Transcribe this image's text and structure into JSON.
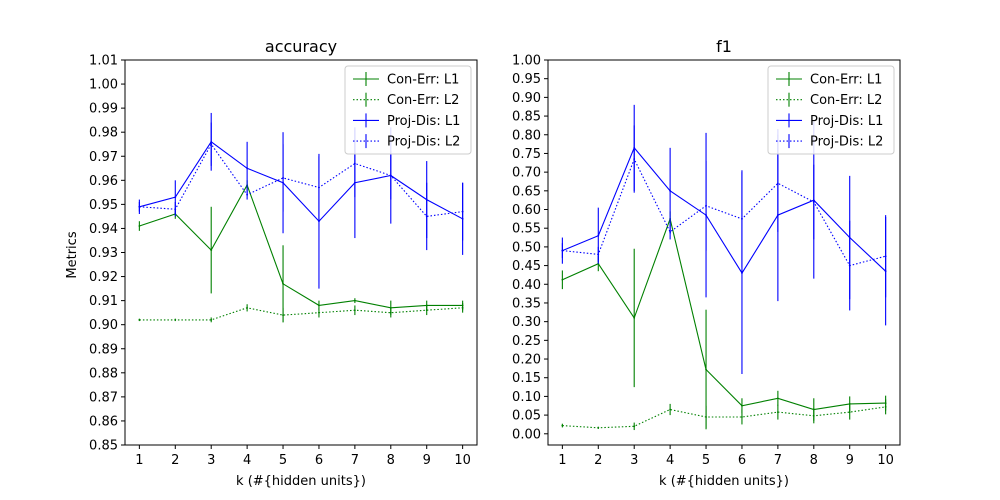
{
  "chart_data": [
    {
      "type": "line",
      "title": "accuracy",
      "xlabel": "k (#{hidden units})",
      "ylabel": "Metrics",
      "x": [
        1,
        2,
        3,
        4,
        5,
        6,
        7,
        8,
        9,
        10
      ],
      "xlim": [
        0.6,
        10.4
      ],
      "ylim": [
        0.85,
        1.01
      ],
      "yticks": [
        0.85,
        0.86,
        0.87,
        0.88,
        0.89,
        0.9,
        0.91,
        0.92,
        0.93,
        0.94,
        0.95,
        0.96,
        0.97,
        0.98,
        0.99,
        1.0,
        1.01
      ],
      "ytick_labels": [
        "0.85",
        "0.86",
        "0.87",
        "0.88",
        "0.89",
        "0.90",
        "0.91",
        "0.92",
        "0.93",
        "0.94",
        "0.95",
        "0.96",
        "0.97",
        "0.98",
        "0.99",
        "1.00",
        "1.01"
      ],
      "legend_position": "top-right",
      "grid": false,
      "series": [
        {
          "name": "Con-Err: L1",
          "color": "#008000",
          "dash": "solid",
          "values": [
            0.941,
            0.946,
            0.931,
            0.958,
            0.917,
            0.908,
            0.91,
            0.907,
            0.908,
            0.908
          ],
          "errors": [
            0.002,
            0.002,
            0.018,
            0.002,
            0.016,
            0.002,
            0.001,
            0.003,
            0.002,
            0.002
          ]
        },
        {
          "name": "Con-Err: L2",
          "color": "#008000",
          "dash": "dotted",
          "values": [
            0.902,
            0.902,
            0.902,
            0.907,
            0.904,
            0.905,
            0.906,
            0.905,
            0.906,
            0.907
          ],
          "errors": [
            0.0005,
            0.0005,
            0.001,
            0.0015,
            0.003,
            0.002,
            0.002,
            0.002,
            0.002,
            0.002
          ]
        },
        {
          "name": "Proj-Dis: L1",
          "color": "#0000ff",
          "dash": "solid",
          "values": [
            0.949,
            0.953,
            0.976,
            0.965,
            0.959,
            0.943,
            0.959,
            0.962,
            0.952,
            0.944
          ],
          "errors": [
            0.003,
            0.007,
            0.012,
            0.011,
            0.021,
            0.028,
            0.023,
            0.02,
            0.016,
            0.015
          ]
        },
        {
          "name": "Proj-Dis: L2",
          "color": "#0000ff",
          "dash": "dotted",
          "values": [
            0.949,
            0.948,
            0.975,
            0.954,
            0.961,
            0.957,
            0.967,
            0.962,
            0.945,
            0.947
          ],
          "errors": [
            0.002,
            0.003,
            0.009,
            0.002,
            0.014,
            0.013,
            0.014,
            0.01,
            0.014,
            0.012
          ]
        }
      ]
    },
    {
      "type": "line",
      "title": "f1",
      "xlabel": "k (#{hidden units})",
      "ylabel": "",
      "x": [
        1,
        2,
        3,
        4,
        5,
        6,
        7,
        8,
        9,
        10
      ],
      "xlim": [
        0.6,
        10.4
      ],
      "ylim": [
        -0.03,
        1.0
      ],
      "yticks": [
        0.0,
        0.05,
        0.1,
        0.15,
        0.2,
        0.25,
        0.3,
        0.35,
        0.4,
        0.45,
        0.5,
        0.55,
        0.6,
        0.65,
        0.7,
        0.75,
        0.8,
        0.85,
        0.9,
        0.95,
        1.0
      ],
      "ytick_labels": [
        "0.00",
        "0.05",
        "0.10",
        "0.15",
        "0.20",
        "0.25",
        "0.30",
        "0.35",
        "0.40",
        "0.45",
        "0.50",
        "0.55",
        "0.60",
        "0.65",
        "0.70",
        "0.75",
        "0.80",
        "0.85",
        "0.90",
        "0.95",
        "1.00"
      ],
      "legend_position": "top-right",
      "grid": false,
      "series": [
        {
          "name": "Con-Err: L1",
          "color": "#008000",
          "dash": "solid",
          "values": [
            0.412,
            0.455,
            0.31,
            0.575,
            0.172,
            0.075,
            0.095,
            0.065,
            0.08,
            0.082
          ],
          "errors": [
            0.025,
            0.02,
            0.185,
            0.02,
            0.16,
            0.02,
            0.02,
            0.03,
            0.02,
            0.02
          ]
        },
        {
          "name": "Con-Err: L2",
          "color": "#008000",
          "dash": "dotted",
          "values": [
            0.022,
            0.016,
            0.02,
            0.065,
            0.045,
            0.045,
            0.058,
            0.048,
            0.058,
            0.072
          ],
          "errors": [
            0.005,
            0.003,
            0.01,
            0.015,
            0.03,
            0.02,
            0.02,
            0.02,
            0.02,
            0.02
          ]
        },
        {
          "name": "Proj-Dis: L1",
          "color": "#0000ff",
          "dash": "solid",
          "values": [
            0.49,
            0.53,
            0.765,
            0.65,
            0.585,
            0.43,
            0.585,
            0.625,
            0.525,
            0.435
          ],
          "errors": [
            0.035,
            0.075,
            0.115,
            0.115,
            0.22,
            0.27,
            0.23,
            0.21,
            0.165,
            0.145
          ]
        },
        {
          "name": "Proj-Dis: L2",
          "color": "#0000ff",
          "dash": "dotted",
          "values": [
            0.49,
            0.48,
            0.735,
            0.54,
            0.61,
            0.575,
            0.67,
            0.62,
            0.45,
            0.475
          ],
          "errors": [
            0.02,
            0.02,
            0.09,
            0.02,
            0.12,
            0.13,
            0.13,
            0.1,
            0.12,
            0.11
          ]
        }
      ]
    }
  ]
}
